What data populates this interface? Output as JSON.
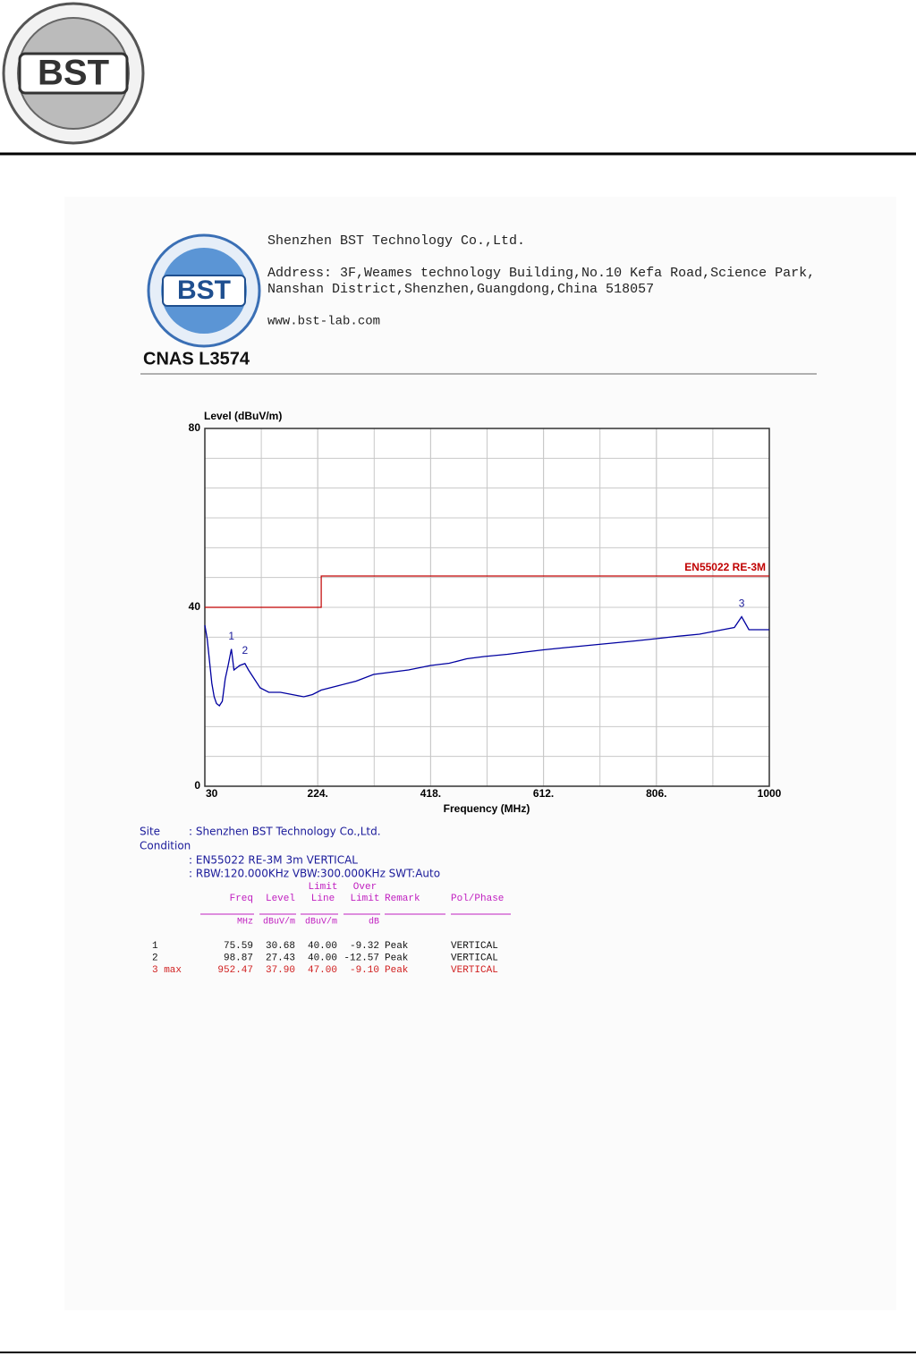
{
  "header": {
    "logo_text": "BST"
  },
  "report_header": {
    "logo_text": "BST",
    "accreditation": "CNAS L3574",
    "company": "Shenzhen BST Technology Co.,Ltd.",
    "address_lines": [
      "Address: 3F,Weames technology Building,No.10 Kefa Road,Science Park,",
      "Nanshan District,Shenzhen,Guangdong,China 518057"
    ],
    "website": "www.bst-lab.com"
  },
  "chart_data": {
    "type": "line",
    "ylabel": "Level (dBuV/m)",
    "xlabel": "Frequency (MHz)",
    "xlim": [
      30,
      1000
    ],
    "ylim": [
      0,
      80
    ],
    "xticks": [
      30,
      {
        "value": 224,
        "label": "224."
      },
      {
        "value": 418,
        "label": "418."
      },
      {
        "value": 612,
        "label": "612."
      },
      {
        "value": 806,
        "label": "806."
      },
      1000
    ],
    "yticks": [
      0,
      40,
      80
    ],
    "grid": true,
    "series": [
      {
        "color": "#0000a0",
        "x": [
          30,
          34,
          38,
          42,
          46,
          50,
          55,
          60,
          65,
          70,
          75.59,
          80,
          85,
          90,
          98.87,
          105,
          115,
          125,
          140,
          160,
          180,
          200,
          215,
          230,
          260,
          290,
          320,
          350,
          380,
          418,
          450,
          480,
          510,
          550,
          580,
          612,
          650,
          690,
          730,
          770,
          806,
          840,
          880,
          920,
          940,
          952.47,
          965,
          1000
        ],
        "values": [
          36,
          33,
          28,
          23,
          20,
          18.5,
          18,
          19,
          24,
          27,
          30.68,
          26,
          26.5,
          27,
          27.43,
          26,
          24,
          22,
          21,
          21,
          20.5,
          20,
          20.5,
          21.5,
          22.5,
          23.5,
          25,
          25.5,
          26,
          27,
          27.5,
          28.5,
          29,
          29.5,
          30,
          30.5,
          31,
          31.5,
          32,
          32.5,
          33,
          33.5,
          34,
          35,
          35.5,
          37.9,
          35,
          35
        ]
      },
      {
        "name": "EN55022 RE-3M",
        "color": "#c00000",
        "x": [
          30,
          230,
          230,
          1000
        ],
        "values": [
          40,
          40,
          47,
          47
        ]
      }
    ],
    "markers": [
      {
        "label": "1",
        "x": 75.59,
        "y": 30.68
      },
      {
        "label": "2",
        "x": 98.87,
        "y": 27.43
      },
      {
        "label": "3",
        "x": 952.47,
        "y": 37.9
      }
    ]
  },
  "info": {
    "site_label": "Site",
    "site": ": Shenzhen BST Technology Co.,Ltd.",
    "condition_label": "Condition",
    "condition_lines": [
      ": EN55022 RE-3M 3m VERTICAL",
      ": RBW:120.000KHz VBW:300.000KHz SWT:Auto"
    ]
  },
  "table": {
    "columns": [
      {
        "title": [
          "Freq"
        ],
        "unit": "MHz"
      },
      {
        "title": [
          "Level"
        ],
        "unit": "dBuV/m"
      },
      {
        "title": [
          "Limit",
          "Line"
        ],
        "unit": "dBuV/m"
      },
      {
        "title": [
          "Over",
          "Limit"
        ],
        "unit": "dB"
      },
      {
        "title": [
          "Remark"
        ]
      },
      {
        "title": [
          "Pol/Phase"
        ]
      }
    ],
    "rows": [
      [
        "1",
        "75.59",
        "30.68",
        "40.00",
        "-9.32",
        "Peak",
        "VERTICAL"
      ],
      [
        "2",
        "98.87",
        "27.43",
        "40.00",
        "-12.57",
        "Peak",
        "VERTICAL"
      ],
      [
        "3 max",
        "952.47",
        "37.90",
        "47.00",
        "-9.10",
        "Peak",
        "VERTICAL"
      ]
    ]
  }
}
